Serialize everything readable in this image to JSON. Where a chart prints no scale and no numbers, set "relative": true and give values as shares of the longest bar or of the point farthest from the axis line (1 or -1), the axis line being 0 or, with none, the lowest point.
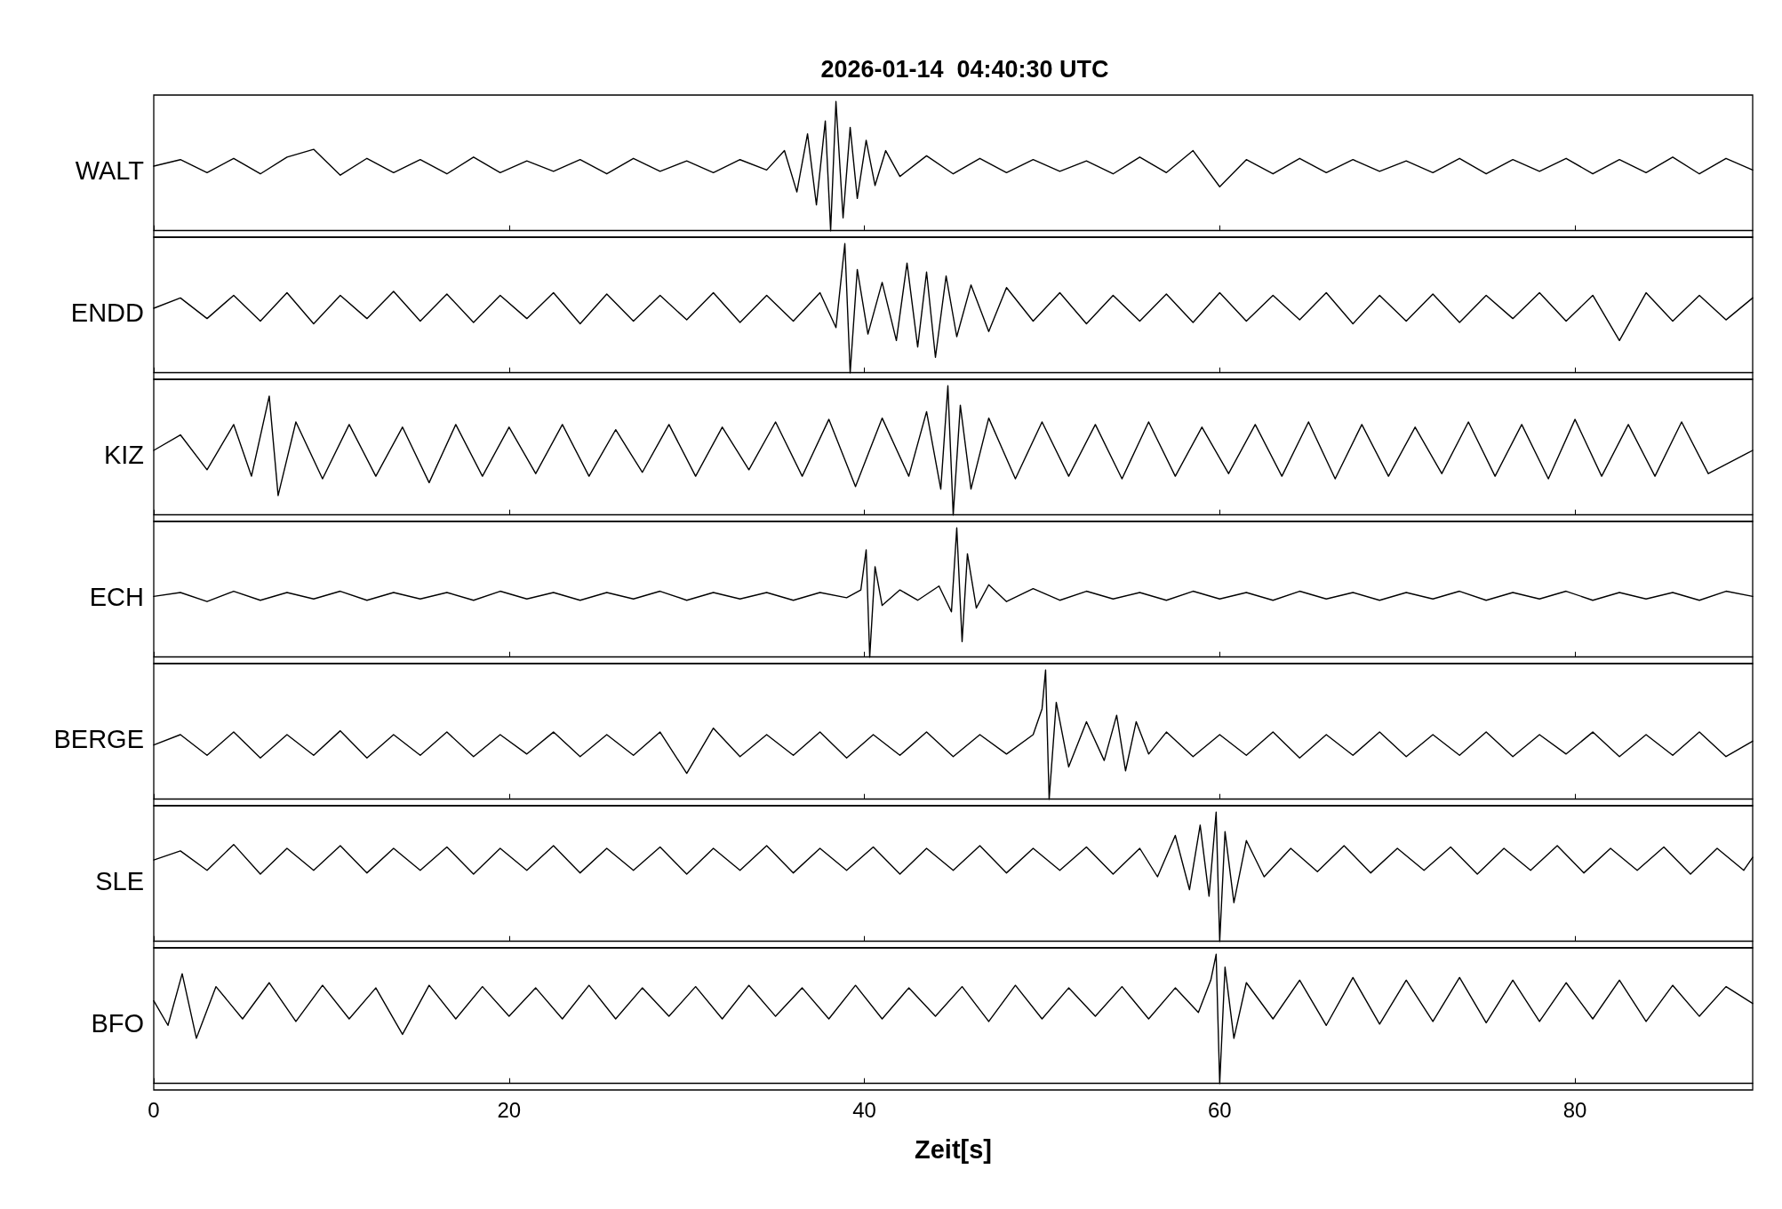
{
  "chart_data": [
    {
      "type": "line",
      "title": "2026-01-14  04:40:30 UTC",
      "ylabel": "WALT",
      "relative": true,
      "color": "#000000",
      "xlim": [
        0,
        90
      ],
      "xticks": [
        0,
        20,
        40,
        60,
        80
      ],
      "tick_labels": false,
      "grid": false,
      "x": [
        0,
        1.5,
        3,
        4.5,
        6,
        7.5,
        9,
        10.5,
        12,
        13.5,
        15,
        16.5,
        18,
        19.5,
        21,
        22.5,
        24,
        25.5,
        27,
        28.5,
        30,
        31.5,
        33,
        34.5,
        35.5,
        36.2,
        36.8,
        37.3,
        37.8,
        38.1,
        38.4,
        38.8,
        39.2,
        39.6,
        40.1,
        40.6,
        41.2,
        42,
        43.5,
        45,
        46.5,
        48,
        49.5,
        51,
        52.5,
        54,
        55.5,
        57,
        58.5,
        60,
        61.5,
        63,
        64.5,
        66,
        67.5,
        69,
        70.5,
        72,
        73.5,
        75,
        76.5,
        78,
        79.5,
        81,
        82.5,
        84,
        85.5,
        87,
        88.5,
        90
      ],
      "values": [
        0.5,
        0.55,
        0.45,
        0.56,
        0.44,
        0.57,
        0.63,
        0.43,
        0.56,
        0.45,
        0.55,
        0.44,
        0.57,
        0.45,
        0.54,
        0.46,
        0.55,
        0.44,
        0.56,
        0.46,
        0.54,
        0.45,
        0.55,
        0.47,
        0.62,
        0.3,
        0.75,
        0.2,
        0.85,
        0,
        1,
        0.1,
        0.8,
        0.25,
        0.7,
        0.35,
        0.62,
        0.42,
        0.58,
        0.44,
        0.56,
        0.45,
        0.55,
        0.46,
        0.54,
        0.44,
        0.57,
        0.45,
        0.62,
        0.34,
        0.55,
        0.44,
        0.56,
        0.45,
        0.55,
        0.46,
        0.54,
        0.45,
        0.56,
        0.44,
        0.55,
        0.46,
        0.56,
        0.44,
        0.55,
        0.45,
        0.57,
        0.44,
        0.56,
        0.47
      ]
    },
    {
      "type": "line",
      "ylabel": "ENDD",
      "relative": true,
      "color": "#000000",
      "xlim": [
        0,
        90
      ],
      "xticks": [
        0,
        20,
        40,
        60,
        80
      ],
      "tick_labels": false,
      "grid": false,
      "x": [
        0,
        1.5,
        3,
        4.5,
        6,
        7.5,
        9,
        10.5,
        12,
        13.5,
        15,
        16.5,
        18,
        19.5,
        21,
        22.5,
        24,
        25.5,
        27,
        28.5,
        30,
        31.5,
        33,
        34.5,
        36,
        37.5,
        38.4,
        38.9,
        39.2,
        39.6,
        40.2,
        41,
        41.8,
        42.4,
        43,
        43.5,
        44,
        44.6,
        45.2,
        46,
        47,
        48,
        49.5,
        51,
        52.5,
        54,
        55.5,
        57,
        58.5,
        60,
        61.5,
        63,
        64.5,
        66,
        67.5,
        69,
        70.5,
        72,
        73.5,
        75,
        76.5,
        78,
        79.5,
        81,
        82.5,
        84,
        85.5,
        87,
        88.5,
        90
      ],
      "values": [
        0.5,
        0.58,
        0.42,
        0.6,
        0.4,
        0.62,
        0.38,
        0.6,
        0.42,
        0.63,
        0.4,
        0.61,
        0.39,
        0.6,
        0.42,
        0.62,
        0.38,
        0.61,
        0.4,
        0.6,
        0.41,
        0.62,
        0.39,
        0.6,
        0.4,
        0.62,
        0.35,
        1,
        0,
        0.8,
        0.3,
        0.7,
        0.25,
        0.85,
        0.2,
        0.78,
        0.12,
        0.75,
        0.28,
        0.68,
        0.32,
        0.66,
        0.4,
        0.62,
        0.38,
        0.6,
        0.4,
        0.61,
        0.39,
        0.62,
        0.4,
        0.6,
        0.41,
        0.62,
        0.38,
        0.6,
        0.4,
        0.61,
        0.39,
        0.6,
        0.42,
        0.62,
        0.4,
        0.6,
        0.25,
        0.62,
        0.4,
        0.6,
        0.41,
        0.58
      ]
    },
    {
      "type": "line",
      "ylabel": "KIZ",
      "relative": true,
      "color": "#000000",
      "xlim": [
        0,
        90
      ],
      "xticks": [
        0,
        20,
        40,
        60,
        80
      ],
      "tick_labels": false,
      "grid": false,
      "x": [
        0,
        1.5,
        3,
        4.5,
        5.5,
        6.5,
        7,
        8,
        9.5,
        11,
        12.5,
        14,
        15.5,
        17,
        18.5,
        20,
        21.5,
        23,
        24.5,
        26,
        27.5,
        29,
        30.5,
        32,
        33.5,
        35,
        36.5,
        38,
        39.5,
        41,
        42.5,
        43.5,
        44.3,
        44.7,
        45,
        45.4,
        46,
        47,
        48.5,
        50,
        51.5,
        53,
        54.5,
        56,
        57.5,
        59,
        60.5,
        62,
        63.5,
        65,
        66.5,
        68,
        69.5,
        71,
        72.5,
        74,
        75.5,
        77,
        78.5,
        80,
        81.5,
        83,
        84.5,
        86,
        87.5,
        90
      ],
      "values": [
        0.5,
        0.62,
        0.35,
        0.7,
        0.3,
        0.92,
        0.15,
        0.72,
        0.28,
        0.7,
        0.3,
        0.68,
        0.25,
        0.7,
        0.3,
        0.68,
        0.32,
        0.7,
        0.3,
        0.66,
        0.33,
        0.7,
        0.3,
        0.68,
        0.35,
        0.72,
        0.3,
        0.74,
        0.22,
        0.75,
        0.3,
        0.8,
        0.2,
        1,
        0,
        0.85,
        0.2,
        0.75,
        0.28,
        0.72,
        0.3,
        0.7,
        0.28,
        0.72,
        0.3,
        0.68,
        0.32,
        0.7,
        0.3,
        0.72,
        0.28,
        0.7,
        0.3,
        0.68,
        0.32,
        0.72,
        0.3,
        0.7,
        0.28,
        0.74,
        0.3,
        0.7,
        0.3,
        0.72,
        0.32,
        0.5
      ]
    },
    {
      "type": "line",
      "ylabel": "ECH",
      "relative": true,
      "color": "#000000",
      "xlim": [
        0,
        90
      ],
      "xticks": [
        0,
        20,
        40,
        60,
        80
      ],
      "tick_labels": false,
      "grid": false,
      "x": [
        0,
        1.5,
        3,
        4.5,
        6,
        7.5,
        9,
        10.5,
        12,
        13.5,
        15,
        16.5,
        18,
        19.5,
        21,
        22.5,
        24,
        25.5,
        27,
        28.5,
        30,
        31.5,
        33,
        34.5,
        36,
        37.5,
        39,
        39.8,
        40.1,
        40.3,
        40.6,
        41,
        42,
        43,
        44.2,
        44.9,
        45.2,
        45.5,
        45.8,
        46.3,
        47,
        48,
        49.5,
        51,
        52.5,
        54,
        55.5,
        57,
        58.5,
        60,
        61.5,
        63,
        64.5,
        66,
        67.5,
        69,
        70.5,
        72,
        73.5,
        75,
        76.5,
        78,
        79.5,
        81,
        82.5,
        84,
        85.5,
        87,
        88.5,
        90
      ],
      "values": [
        0.47,
        0.5,
        0.43,
        0.51,
        0.44,
        0.5,
        0.45,
        0.51,
        0.44,
        0.5,
        0.45,
        0.5,
        0.44,
        0.51,
        0.45,
        0.5,
        0.44,
        0.5,
        0.45,
        0.51,
        0.44,
        0.5,
        0.45,
        0.5,
        0.44,
        0.5,
        0.46,
        0.52,
        0.83,
        0,
        0.7,
        0.4,
        0.52,
        0.44,
        0.55,
        0.35,
        1,
        0.12,
        0.8,
        0.38,
        0.56,
        0.43,
        0.53,
        0.44,
        0.51,
        0.45,
        0.5,
        0.44,
        0.51,
        0.45,
        0.5,
        0.44,
        0.51,
        0.45,
        0.5,
        0.44,
        0.5,
        0.45,
        0.51,
        0.44,
        0.5,
        0.45,
        0.51,
        0.44,
        0.5,
        0.45,
        0.5,
        0.44,
        0.51,
        0.47
      ]
    },
    {
      "type": "line",
      "ylabel": "BERGE",
      "relative": true,
      "color": "#000000",
      "xlim": [
        0,
        90
      ],
      "xticks": [
        0,
        20,
        40,
        60,
        80
      ],
      "tick_labels": false,
      "grid": false,
      "x": [
        0,
        1.5,
        3,
        4.5,
        6,
        7.5,
        9,
        10.5,
        12,
        13.5,
        15,
        16.5,
        18,
        19.5,
        21,
        22.5,
        24,
        25.5,
        27,
        28.5,
        30,
        31.5,
        33,
        34.5,
        36,
        37.5,
        39,
        40.5,
        42,
        43.5,
        45,
        46.5,
        48,
        49.5,
        50,
        50.2,
        50.4,
        50.8,
        51.5,
        52.5,
        53.5,
        54.2,
        54.7,
        55.3,
        56,
        57,
        58.5,
        60,
        61.5,
        63,
        64.5,
        66,
        67.5,
        69,
        70.5,
        72,
        73.5,
        75,
        76.5,
        78,
        79.5,
        81,
        82.5,
        84,
        85.5,
        87,
        88.5,
        90
      ],
      "values": [
        0.42,
        0.5,
        0.34,
        0.52,
        0.32,
        0.5,
        0.34,
        0.53,
        0.32,
        0.5,
        0.34,
        0.52,
        0.33,
        0.5,
        0.35,
        0.52,
        0.33,
        0.5,
        0.34,
        0.52,
        0.2,
        0.55,
        0.33,
        0.5,
        0.34,
        0.52,
        0.32,
        0.5,
        0.34,
        0.52,
        0.33,
        0.5,
        0.35,
        0.5,
        0.7,
        1,
        0,
        0.75,
        0.25,
        0.6,
        0.3,
        0.65,
        0.22,
        0.6,
        0.35,
        0.52,
        0.33,
        0.5,
        0.34,
        0.52,
        0.32,
        0.5,
        0.34,
        0.52,
        0.33,
        0.5,
        0.34,
        0.52,
        0.33,
        0.5,
        0.35,
        0.52,
        0.33,
        0.5,
        0.34,
        0.52,
        0.33,
        0.45
      ]
    },
    {
      "type": "line",
      "ylabel": "SLE",
      "relative": true,
      "color": "#000000",
      "xlim": [
        0,
        90
      ],
      "xticks": [
        0,
        20,
        40,
        60,
        80
      ],
      "tick_labels": false,
      "grid": false,
      "x": [
        0,
        1.5,
        3,
        4.5,
        6,
        7.5,
        9,
        10.5,
        12,
        13.5,
        15,
        16.5,
        18,
        19.5,
        21,
        22.5,
        24,
        25.5,
        27,
        28.5,
        30,
        31.5,
        33,
        34.5,
        36,
        37.5,
        39,
        40.5,
        42,
        43.5,
        45,
        46.5,
        48,
        49.5,
        51,
        52.5,
        54,
        55.5,
        56.5,
        57.5,
        58.3,
        58.9,
        59.4,
        59.8,
        60,
        60.3,
        60.8,
        61.5,
        62.5,
        64,
        65.5,
        67,
        68.5,
        70,
        71.5,
        73,
        74.5,
        76,
        77.5,
        79,
        80.5,
        82,
        83.5,
        85,
        86.5,
        88,
        89.5,
        90
      ],
      "values": [
        0.63,
        0.7,
        0.55,
        0.75,
        0.52,
        0.72,
        0.55,
        0.74,
        0.53,
        0.72,
        0.55,
        0.73,
        0.52,
        0.72,
        0.55,
        0.74,
        0.53,
        0.72,
        0.55,
        0.73,
        0.52,
        0.72,
        0.55,
        0.74,
        0.53,
        0.72,
        0.55,
        0.73,
        0.52,
        0.72,
        0.55,
        0.74,
        0.53,
        0.72,
        0.55,
        0.73,
        0.52,
        0.72,
        0.5,
        0.82,
        0.4,
        0.9,
        0.35,
        1,
        0,
        0.85,
        0.3,
        0.78,
        0.5,
        0.72,
        0.54,
        0.74,
        0.53,
        0.72,
        0.55,
        0.73,
        0.52,
        0.72,
        0.55,
        0.74,
        0.53,
        0.72,
        0.55,
        0.73,
        0.52,
        0.72,
        0.55,
        0.65
      ]
    },
    {
      "type": "line",
      "ylabel": "BFO",
      "xlabel": "Zeit[s]",
      "relative": true,
      "color": "#000000",
      "xlim": [
        0,
        90
      ],
      "xticks": [
        0,
        20,
        40,
        60,
        80
      ],
      "tick_labels": "x",
      "grid": false,
      "x": [
        0,
        0.8,
        1.6,
        2.4,
        3.5,
        5,
        6.5,
        8,
        9.5,
        11,
        12.5,
        14,
        15.5,
        17,
        18.5,
        20,
        21.5,
        23,
        24.5,
        26,
        27.5,
        29,
        30.5,
        32,
        33.5,
        35,
        36.5,
        38,
        39.5,
        41,
        42.5,
        44,
        45.5,
        47,
        48.5,
        50,
        51.5,
        53,
        54.5,
        56,
        57.5,
        58.8,
        59.5,
        59.8,
        60,
        60.3,
        60.8,
        61.5,
        63,
        64.5,
        66,
        67.5,
        69,
        70.5,
        72,
        73.5,
        75,
        76.5,
        78,
        79.5,
        81,
        82.5,
        84,
        85.5,
        87,
        88.5,
        90
      ],
      "values": [
        0.64,
        0.45,
        0.85,
        0.35,
        0.75,
        0.5,
        0.78,
        0.48,
        0.76,
        0.5,
        0.74,
        0.38,
        0.76,
        0.5,
        0.75,
        0.52,
        0.74,
        0.5,
        0.76,
        0.5,
        0.74,
        0.52,
        0.75,
        0.5,
        0.76,
        0.52,
        0.74,
        0.5,
        0.76,
        0.5,
        0.74,
        0.52,
        0.75,
        0.48,
        0.76,
        0.5,
        0.74,
        0.52,
        0.75,
        0.5,
        0.74,
        0.55,
        0.8,
        1,
        0,
        0.9,
        0.35,
        0.78,
        0.5,
        0.8,
        0.45,
        0.82,
        0.46,
        0.8,
        0.48,
        0.82,
        0.47,
        0.8,
        0.48,
        0.78,
        0.5,
        0.8,
        0.48,
        0.76,
        0.52,
        0.75,
        0.62
      ]
    }
  ]
}
